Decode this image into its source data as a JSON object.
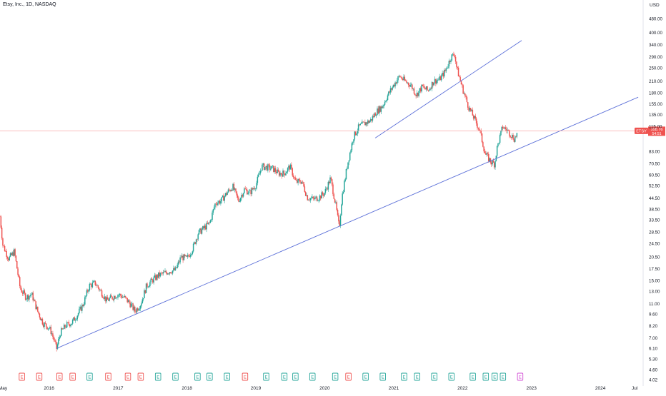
{
  "header": {
    "title": "Etsy, Inc., 1D, NASDAQ"
  },
  "colors": {
    "up": "#26a69a",
    "down": "#ef5350",
    "trendline": "#5b6fd8",
    "price_line": "#f7a8a8",
    "axis_text": "#131722",
    "earnings_future": "#d24fd4"
  },
  "chart_data": {
    "type": "candlestick",
    "title": "Etsy, Inc., 1D, NASDAQ",
    "y_axis": {
      "unit_label": "USD",
      "scale": "log",
      "range": [
        4.0,
        500.0
      ],
      "ticks": [
        "480.00",
        "400.00",
        "340.00",
        "290.00",
        "250.00",
        "210.00",
        "180.00",
        "155.00",
        "135.00",
        "115.00",
        "83.00",
        "70.50",
        "60.50",
        "52.50",
        "44.50",
        "38.50",
        "33.50",
        "28.50",
        "24.50",
        "20.50",
        "17.50",
        "15.00",
        "13.00",
        "11.00",
        "9.60",
        "8.20",
        "7.00",
        "6.10",
        "5.30",
        "4.60",
        "4.02"
      ]
    },
    "x_axis": {
      "range": [
        "2015-04-16",
        "2024-08-15"
      ],
      "ticks": [
        {
          "label": "May",
          "date": "2015-05-01"
        },
        {
          "label": "2016",
          "date": "2016-01-01"
        },
        {
          "label": "2017",
          "date": "2017-01-01"
        },
        {
          "label": "2018",
          "date": "2018-01-01"
        },
        {
          "label": "2019",
          "date": "2019-01-01"
        },
        {
          "label": "2020",
          "date": "2020-01-01"
        },
        {
          "label": "2021",
          "date": "2021-01-01"
        },
        {
          "label": "2022",
          "date": "2022-01-01"
        },
        {
          "label": "2023",
          "date": "2023-01-01"
        },
        {
          "label": "2024",
          "date": "2024-01-01"
        },
        {
          "label": "Jul",
          "date": "2024-07-01"
        }
      ]
    },
    "price_path": [
      [
        "2015-04-16",
        35
      ],
      [
        "2015-05-01",
        24
      ],
      [
        "2015-06-01",
        20
      ],
      [
        "2015-07-01",
        22
      ],
      [
        "2015-08-01",
        13.5
      ],
      [
        "2015-09-01",
        12
      ],
      [
        "2015-10-01",
        12.5
      ],
      [
        "2015-11-01",
        10
      ],
      [
        "2015-12-01",
        8.5
      ],
      [
        "2016-01-01",
        8
      ],
      [
        "2016-01-15",
        7.5
      ],
      [
        "2016-02-10",
        6.1
      ],
      [
        "2016-03-01",
        7.5
      ],
      [
        "2016-04-01",
        8.3
      ],
      [
        "2016-05-01",
        8.6
      ],
      [
        "2016-06-01",
        9.6
      ],
      [
        "2016-07-01",
        11
      ],
      [
        "2016-08-01",
        14
      ],
      [
        "2016-09-01",
        14.5
      ],
      [
        "2016-10-01",
        13
      ],
      [
        "2016-11-01",
        11.5
      ],
      [
        "2016-12-01",
        12
      ],
      [
        "2017-01-01",
        12.5
      ],
      [
        "2017-02-01",
        12
      ],
      [
        "2017-03-01",
        11.2
      ],
      [
        "2017-04-01",
        10
      ],
      [
        "2017-05-01",
        11
      ],
      [
        "2017-06-01",
        14
      ],
      [
        "2017-07-01",
        15
      ],
      [
        "2017-08-01",
        16
      ],
      [
        "2017-09-01",
        16.5
      ],
      [
        "2017-10-01",
        17
      ],
      [
        "2017-11-01",
        17.2
      ],
      [
        "2017-12-01",
        20.5
      ],
      [
        "2018-01-01",
        20
      ],
      [
        "2018-02-01",
        23
      ],
      [
        "2018-03-01",
        28
      ],
      [
        "2018-04-01",
        30
      ],
      [
        "2018-05-01",
        32
      ],
      [
        "2018-06-01",
        42
      ],
      [
        "2018-07-01",
        43
      ],
      [
        "2018-08-01",
        48
      ],
      [
        "2018-09-01",
        52
      ],
      [
        "2018-10-01",
        43
      ],
      [
        "2018-11-01",
        50
      ],
      [
        "2018-12-01",
        48
      ],
      [
        "2019-01-01",
        53
      ],
      [
        "2019-02-01",
        68
      ],
      [
        "2019-03-01",
        67
      ],
      [
        "2019-04-01",
        66
      ],
      [
        "2019-05-01",
        62
      ],
      [
        "2019-06-01",
        62
      ],
      [
        "2019-07-01",
        68
      ],
      [
        "2019-08-01",
        55
      ],
      [
        "2019-09-01",
        56
      ],
      [
        "2019-10-01",
        45
      ],
      [
        "2019-11-01",
        44
      ],
      [
        "2019-12-01",
        45
      ],
      [
        "2020-01-01",
        48
      ],
      [
        "2020-02-01",
        58
      ],
      [
        "2020-03-01",
        40
      ],
      [
        "2020-03-18",
        30
      ],
      [
        "2020-04-01",
        45
      ],
      [
        "2020-05-01",
        70
      ],
      [
        "2020-06-01",
        100
      ],
      [
        "2020-07-01",
        115
      ],
      [
        "2020-08-01",
        120
      ],
      [
        "2020-09-01",
        125
      ],
      [
        "2020-10-01",
        140
      ],
      [
        "2020-11-01",
        150
      ],
      [
        "2020-12-01",
        175
      ],
      [
        "2021-01-01",
        200
      ],
      [
        "2021-02-01",
        225
      ],
      [
        "2021-03-01",
        210
      ],
      [
        "2021-04-01",
        200
      ],
      [
        "2021-05-01",
        175
      ],
      [
        "2021-06-01",
        195
      ],
      [
        "2021-07-01",
        185
      ],
      [
        "2021-08-01",
        210
      ],
      [
        "2021-09-01",
        215
      ],
      [
        "2021-10-01",
        240
      ],
      [
        "2021-11-01",
        290
      ],
      [
        "2021-11-20",
        300
      ],
      [
        "2021-12-01",
        250
      ],
      [
        "2022-01-01",
        190
      ],
      [
        "2022-02-01",
        150
      ],
      [
        "2022-03-01",
        130
      ],
      [
        "2022-04-01",
        110
      ],
      [
        "2022-05-01",
        80
      ],
      [
        "2022-06-01",
        72
      ],
      [
        "2022-06-20",
        70
      ],
      [
        "2022-07-01",
        85
      ],
      [
        "2022-08-01",
        115
      ],
      [
        "2022-09-01",
        108
      ],
      [
        "2022-10-01",
        98
      ],
      [
        "2022-10-20",
        106
      ]
    ],
    "trendlines": [
      {
        "from": [
          "2016-02-10",
          6.1
        ],
        "to": [
          "2024-07-20",
          170
        ]
      },
      {
        "from": [
          "2020-09-25",
          99
        ],
        "to": [
          "2022-11-10",
          360
        ]
      }
    ],
    "current_price": {
      "symbol": "ETSY",
      "price": "108.76",
      "countdown": "54:51"
    },
    "earnings_markers": [
      {
        "date": "2015-08-10",
        "label": "E",
        "kind": "miss"
      },
      {
        "date": "2015-11-10",
        "label": "E",
        "kind": "miss"
      },
      {
        "date": "2016-02-25",
        "label": "E",
        "kind": "miss"
      },
      {
        "date": "2016-05-05",
        "label": "E",
        "kind": "miss"
      },
      {
        "date": "2016-08-03",
        "label": "E",
        "kind": "beat"
      },
      {
        "date": "2016-11-10",
        "label": "E",
        "kind": "miss"
      },
      {
        "date": "2017-02-22",
        "label": "E",
        "kind": "miss"
      },
      {
        "date": "2017-05-01",
        "label": "E",
        "kind": "miss"
      },
      {
        "date": "2017-08-01",
        "label": "E",
        "kind": "beat"
      },
      {
        "date": "2017-11-01",
        "label": "E",
        "kind": "beat"
      },
      {
        "date": "2018-02-26",
        "label": "E",
        "kind": "beat"
      },
      {
        "date": "2018-05-01",
        "label": "E",
        "kind": "beat"
      },
      {
        "date": "2018-08-01",
        "label": "E",
        "kind": "beat"
      },
      {
        "date": "2018-11-05",
        "label": "E",
        "kind": "miss"
      },
      {
        "date": "2019-02-25",
        "label": "E",
        "kind": "beat"
      },
      {
        "date": "2019-06-01",
        "label": "E",
        "kind": "beat"
      },
      {
        "date": "2019-07-30",
        "label": "E",
        "kind": "beat"
      },
      {
        "date": "2019-10-28",
        "label": "E",
        "kind": "beat"
      },
      {
        "date": "2020-02-26",
        "label": "E",
        "kind": "beat"
      },
      {
        "date": "2020-05-06",
        "label": "E",
        "kind": "miss"
      },
      {
        "date": "2020-08-05",
        "label": "E",
        "kind": "beat"
      },
      {
        "date": "2020-11-04",
        "label": "E",
        "kind": "beat"
      },
      {
        "date": "2021-02-25",
        "label": "E",
        "kind": "beat"
      },
      {
        "date": "2021-05-05",
        "label": "E",
        "kind": "beat"
      },
      {
        "date": "2021-08-04",
        "label": "E",
        "kind": "beat"
      },
      {
        "date": "2021-11-03",
        "label": "E",
        "kind": "beat"
      },
      {
        "date": "2022-02-24",
        "label": "E",
        "kind": "beat"
      },
      {
        "date": "2022-05-04",
        "label": "E",
        "kind": "beat"
      },
      {
        "date": "2022-06-20",
        "label": "E",
        "kind": "beat"
      },
      {
        "date": "2022-08-03",
        "label": "E",
        "kind": "beat"
      },
      {
        "date": "2022-11-02",
        "label": "E",
        "kind": "upcoming"
      }
    ]
  }
}
